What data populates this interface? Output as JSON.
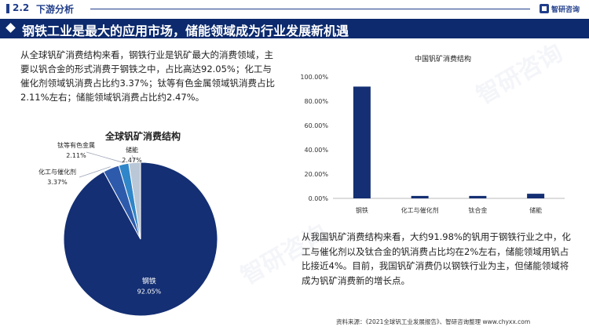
{
  "header": {
    "section_number": "2.2",
    "section_title": "下游分析",
    "logo_text": "智研咨询"
  },
  "banner": {
    "title": "钢铁工业是最大的应用市场，储能领域成为行业发展新机遇"
  },
  "text": {
    "paragraph1": "从全球钒矿消费结构来看，钢铁行业是钒矿最大的消费领域，主要以钒合金的形式消费于钢铁之中，占比高达92.05%；化工与催化剂领域钒消费占比约3.37%；钛等有色金属领域钒消费占比2.11%左右；储能领域钒消费占比约2.47%。",
    "paragraph2": "从我国钒矿消费结构来看，大约91.98%的钒用于钢铁行业之中，化工与催化剂以及钛合金的钒消费占比均在2%左右，储能领域用钒占比接近4%。目前，我国钒矿消费仍以钢铁行业为主，但储能领域将成为钒矿消费新的增长点。"
  },
  "footer": {
    "source": "资料来源：《2021全球钒工业发展报告》、智研咨询整理  www.chyxx.com"
  },
  "chart_data": [
    {
      "type": "pie",
      "title": "全球钒矿消费结构",
      "slices": [
        {
          "label": "钢铁",
          "value": 92.05,
          "display": "92.05%",
          "color": "#142f73"
        },
        {
          "label": "化工与催化剂",
          "value": 3.37,
          "display": "3.37%",
          "color": "#2e5aac"
        },
        {
          "label": "钛等有色金属",
          "value": 2.11,
          "display": "2.11%",
          "color": "#2f86c8"
        },
        {
          "label": "储能",
          "value": 2.47,
          "display": "2.47%",
          "color": "#b9c7d6"
        }
      ]
    },
    {
      "type": "bar",
      "title": "中国钒矿消费结构",
      "categories": [
        "钢铁",
        "化工与催化剂",
        "钛合金",
        "储能"
      ],
      "values": [
        91.98,
        2,
        2,
        3.8
      ],
      "color": "#142f73",
      "ylim": [
        0,
        100
      ],
      "yticks": [
        "0.00%",
        "20.00%",
        "40.00%",
        "60.00%",
        "80.00%",
        "100.00%"
      ],
      "grid": false
    }
  ]
}
